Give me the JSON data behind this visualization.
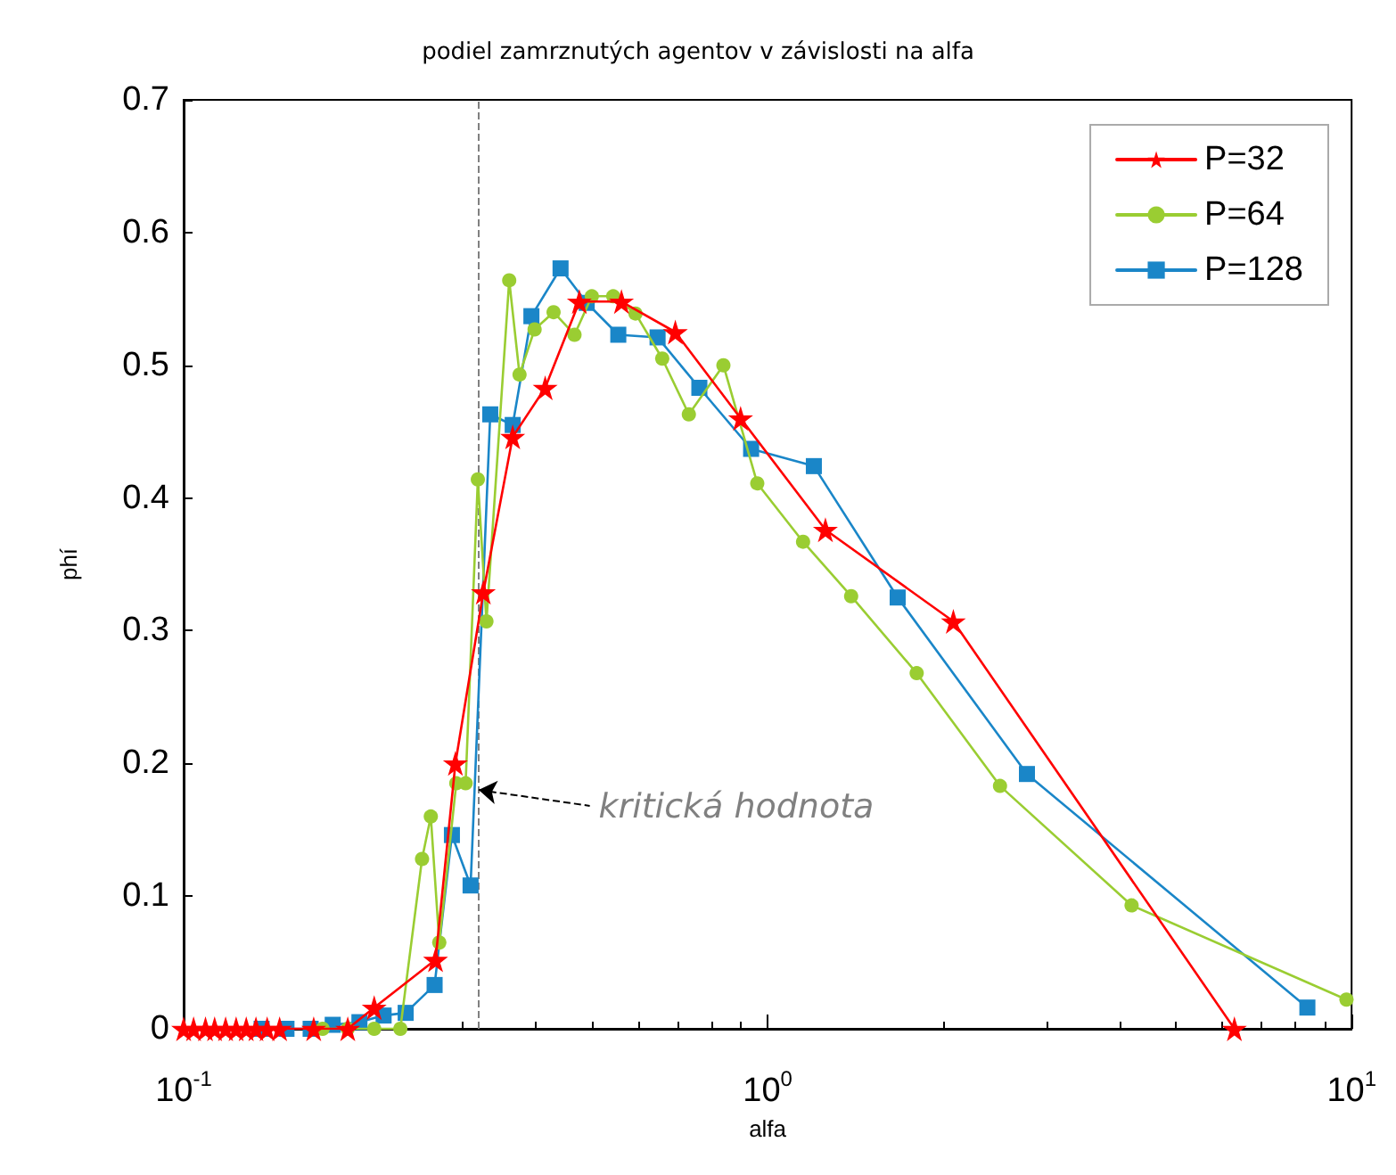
{
  "chart_data": {
    "type": "line",
    "title": "podiel zamrznutých agentov v závislosti na alfa",
    "xlabel": "alfa",
    "ylabel": "phí",
    "log": "x",
    "xlim": [
      0.1,
      10
    ],
    "xticks": [
      {
        "value": 0.1,
        "label": "10$^{-1}$"
      },
      {
        "value": 1,
        "label": "10$^{0}$"
      },
      {
        "value": 10,
        "label": "10$^{1}$"
      }
    ],
    "ylim": [
      0,
      0.7
    ],
    "yticks": [
      0,
      0.1,
      0.2,
      0.3,
      0.4,
      0.5,
      0.6,
      0.7
    ],
    "grid": false,
    "legend": "top right",
    "line_style": "solid",
    "ref_lines": [
      {
        "axis": "x",
        "value": 0.32,
        "label": null,
        "color": "#808080",
        "line_style": "dashed"
      }
    ],
    "annotations": [
      {
        "text": "kritická hodnota",
        "x": 0.32,
        "y": 0.18
      }
    ],
    "series": [
      {
        "name": "P=32",
        "color": "#ff0000",
        "marker": "star",
        "x": [
          0.1,
          0.104,
          0.109,
          0.113,
          0.118,
          0.123,
          0.128,
          0.133,
          0.139,
          0.146,
          0.167,
          0.191,
          0.212,
          0.27,
          0.292,
          0.326,
          0.366,
          0.416,
          0.476,
          0.562,
          0.695,
          0.899,
          1.256,
          2.08,
          6.3
        ],
        "values": [
          0,
          0,
          0,
          0,
          0,
          0,
          0,
          0,
          0,
          0,
          0,
          0,
          0.016,
          0.052,
          0.2,
          0.329,
          0.446,
          0.483,
          0.548,
          0.548,
          0.525,
          0.46,
          0.376,
          0.307,
          0
        ]
      },
      {
        "name": "P=64",
        "color": "#9acd32",
        "marker": "circle",
        "x": [
          0.173,
          0.191,
          0.212,
          0.235,
          0.256,
          0.265,
          0.274,
          0.293,
          0.304,
          0.319,
          0.33,
          0.361,
          0.376,
          0.399,
          0.43,
          0.467,
          0.5,
          0.544,
          0.594,
          0.66,
          0.733,
          0.84,
          0.96,
          1.15,
          1.39,
          1.8,
          2.5,
          4.2,
          9.8
        ],
        "values": [
          0,
          0,
          0,
          0,
          0.128,
          0.16,
          0.065,
          0.185,
          0.185,
          0.414,
          0.307,
          0.564,
          0.493,
          0.527,
          0.54,
          0.523,
          0.552,
          0.552,
          0.539,
          0.505,
          0.463,
          0.5,
          0.411,
          0.367,
          0.326,
          0.268,
          0.183,
          0.093,
          0.022
        ]
      },
      {
        "name": "P=128",
        "color": "#1a86c8",
        "marker": "square",
        "x": [
          0.136,
          0.15,
          0.165,
          0.18,
          0.2,
          0.22,
          0.24,
          0.269,
          0.288,
          0.31,
          0.335,
          0.366,
          0.394,
          0.442,
          0.49,
          0.555,
          0.648,
          0.764,
          0.937,
          1.2,
          1.67,
          2.78,
          8.4
        ],
        "values": [
          0,
          0,
          0,
          0.003,
          0.005,
          0.01,
          0.012,
          0.033,
          0.146,
          0.108,
          0.463,
          0.455,
          0.537,
          0.573,
          0.547,
          0.523,
          0.521,
          0.483,
          0.437,
          0.424,
          0.325,
          0.192,
          0.016
        ]
      }
    ]
  }
}
